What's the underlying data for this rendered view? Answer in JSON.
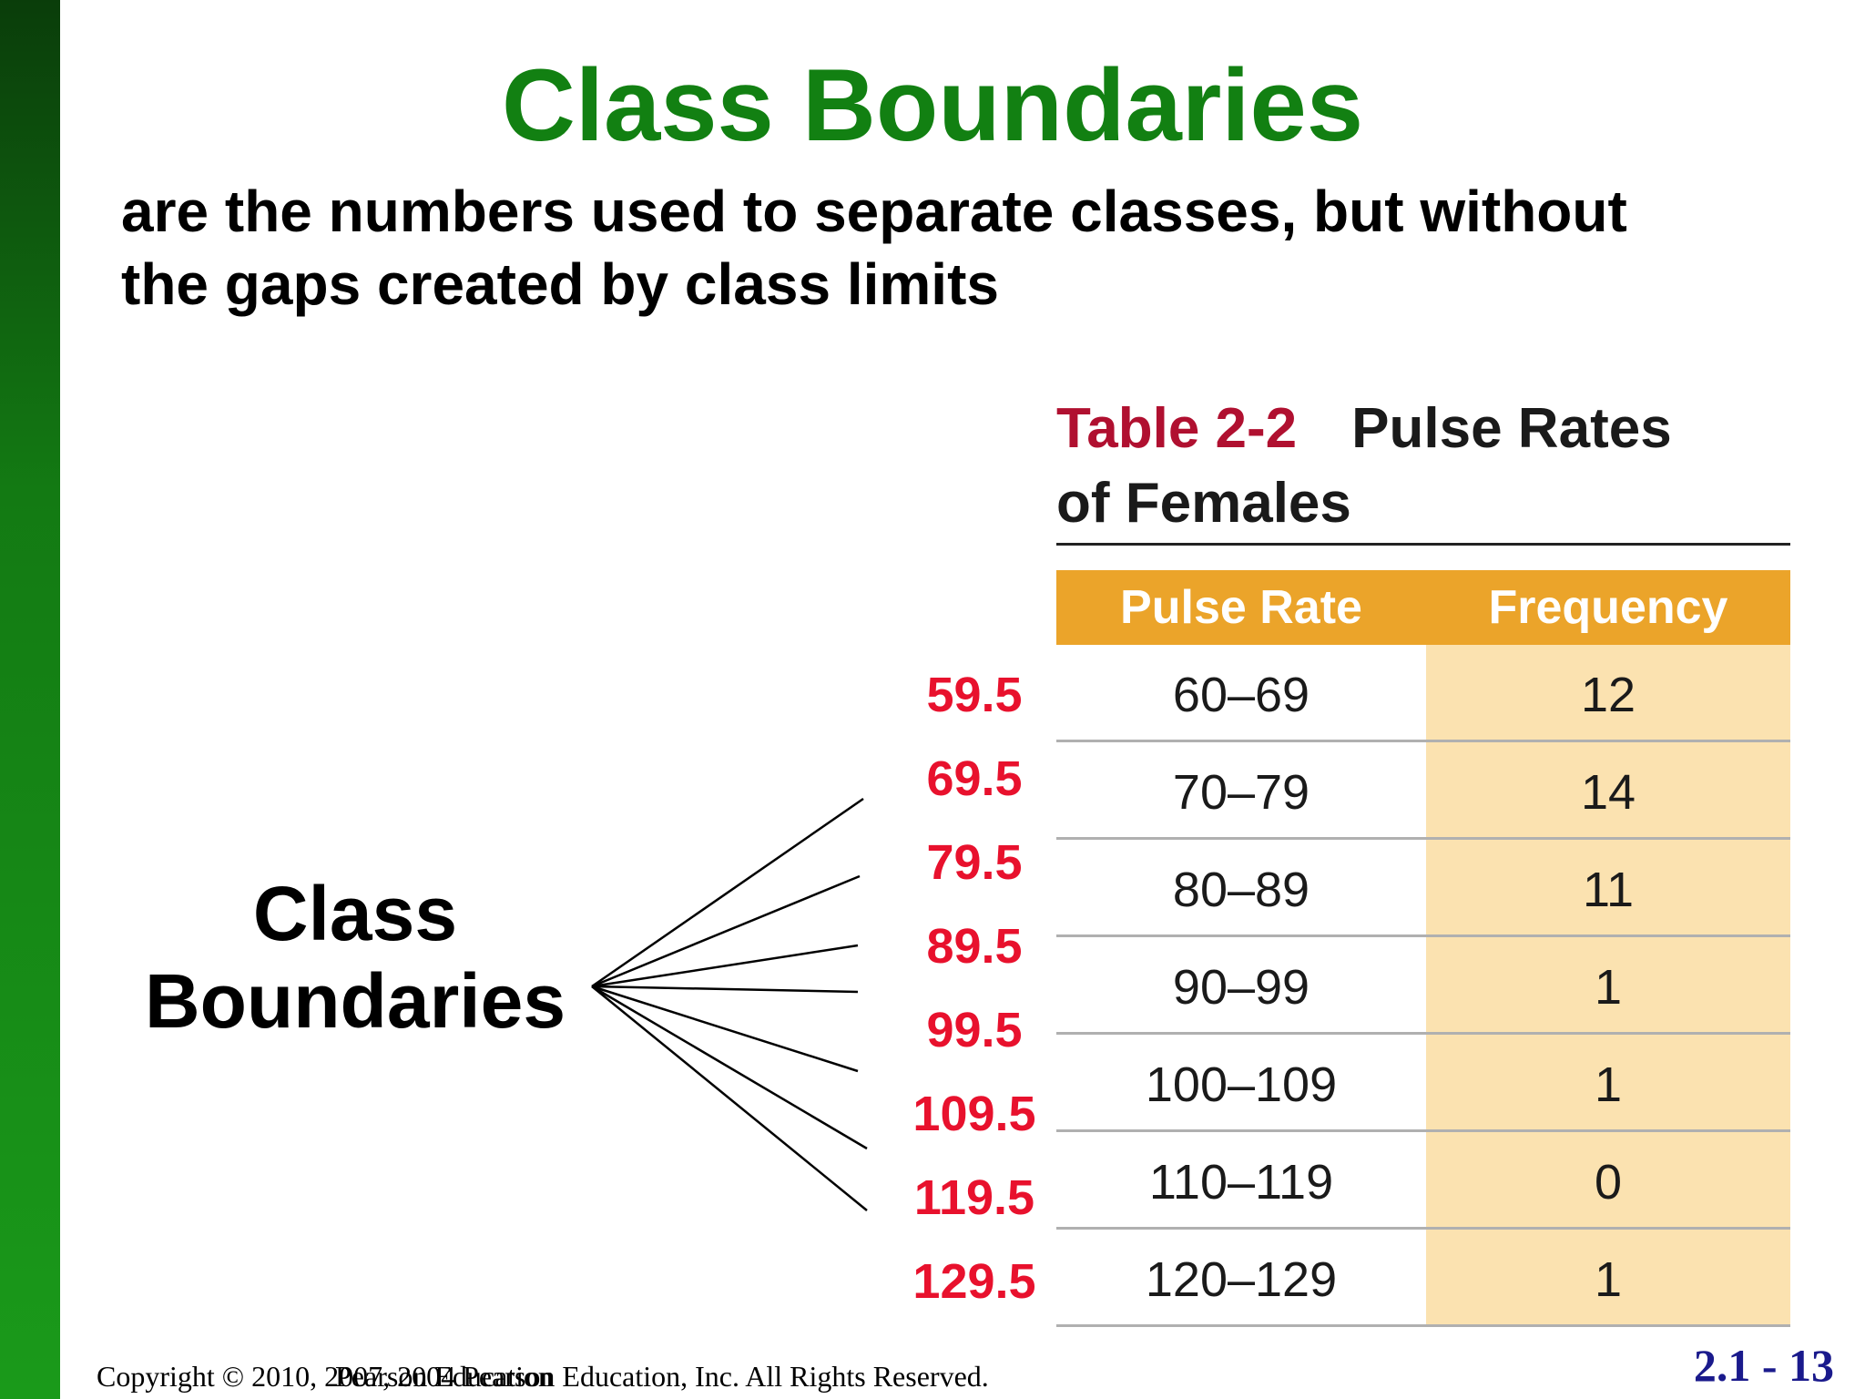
{
  "slide": {
    "title": "Class Boundaries",
    "subtitle_line1": "are the numbers used to separate classes, but without",
    "subtitle_line2": "the gaps created by class limits",
    "side_label_line1": "Class",
    "side_label_line2": "Boundaries",
    "footer_copyright": "Copyright © 2010, 2007, 2004 Pearson Education, Inc. All Rights Reserved.",
    "footer_overlay": "Pearson Education",
    "slide_number": "2.1 - 13",
    "colors": {
      "title": "#128012",
      "boundaries": "#e8112d",
      "table_header": "#eba42a",
      "frequency_column": "#fbe2b0"
    }
  },
  "table": {
    "caption_number": "Table 2-2",
    "caption_title_line1": "Pulse Rates",
    "caption_title_line2": "of Females",
    "headers": [
      "Pulse Rate",
      "Frequency"
    ],
    "rows": [
      {
        "rate": "60–69",
        "frequency": "12"
      },
      {
        "rate": "70–79",
        "frequency": "14"
      },
      {
        "rate": "80–89",
        "frequency": "11"
      },
      {
        "rate": "90–99",
        "frequency": "1"
      },
      {
        "rate": "100–109",
        "frequency": "1"
      },
      {
        "rate": "110–119",
        "frequency": "0"
      },
      {
        "rate": "120–129",
        "frequency": "1"
      }
    ]
  },
  "boundaries": [
    "59.5",
    "69.5",
    "79.5",
    "89.5",
    "99.5",
    "109.5",
    "119.5",
    "129.5"
  ]
}
